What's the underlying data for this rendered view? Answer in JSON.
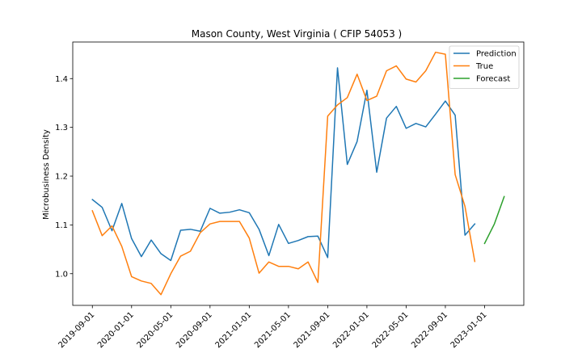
{
  "chart_data": {
    "type": "line",
    "title": "Mason County, West Virginia ( CFIP 54053 )",
    "xlabel": "",
    "ylabel": "Microbusiness Density",
    "ylim": [
      0.935,
      1.475
    ],
    "yticks": [
      1.0,
      1.1,
      1.2,
      1.3,
      1.4
    ],
    "ytick_labels": [
      "1.0",
      "1.1",
      "1.2",
      "1.3",
      "1.4"
    ],
    "x_index_range": [
      -2.0,
      44.0
    ],
    "xtick_positions": [
      0,
      4,
      8,
      12,
      16,
      20,
      24,
      28,
      32,
      36,
      40
    ],
    "xtick_labels": [
      "2019-09-01",
      "2020-01-01",
      "2020-05-01",
      "2020-09-01",
      "2021-01-01",
      "2021-05-01",
      "2021-09-01",
      "2022-01-01",
      "2022-05-01",
      "2022-09-01",
      "2023-01-01"
    ],
    "legend_position": "top-right",
    "series": [
      {
        "name": "Prediction",
        "color": "#1f77b4",
        "x_start": 0,
        "values": [
          1.152,
          1.136,
          1.088,
          1.144,
          1.072,
          1.035,
          1.069,
          1.041,
          1.027,
          1.089,
          1.091,
          1.087,
          1.134,
          1.124,
          1.126,
          1.131,
          1.125,
          1.091,
          1.037,
          1.101,
          1.062,
          1.068,
          1.076,
          1.077,
          1.033,
          1.422,
          1.224,
          1.271,
          1.376,
          1.208,
          1.319,
          1.343,
          1.298,
          1.308,
          1.301,
          1.327,
          1.354,
          1.325,
          1.079,
          1.102
        ]
      },
      {
        "name": "True",
        "color": "#ff7f0e",
        "x_start": 0,
        "values": [
          1.129,
          1.078,
          1.098,
          1.056,
          0.994,
          0.985,
          0.98,
          0.957,
          1.0,
          1.036,
          1.046,
          1.084,
          1.102,
          1.107,
          1.107,
          1.107,
          1.073,
          1.001,
          1.024,
          1.015,
          1.015,
          1.01,
          1.024,
          0.982,
          1.323,
          1.346,
          1.361,
          1.409,
          1.355,
          1.364,
          1.416,
          1.426,
          1.399,
          1.393,
          1.416,
          1.454,
          1.45,
          1.203,
          1.138,
          1.025
        ]
      },
      {
        "name": "Forecast",
        "color": "#2ca02c",
        "x_start": 40,
        "values": [
          1.062,
          1.102,
          1.158
        ]
      }
    ]
  }
}
